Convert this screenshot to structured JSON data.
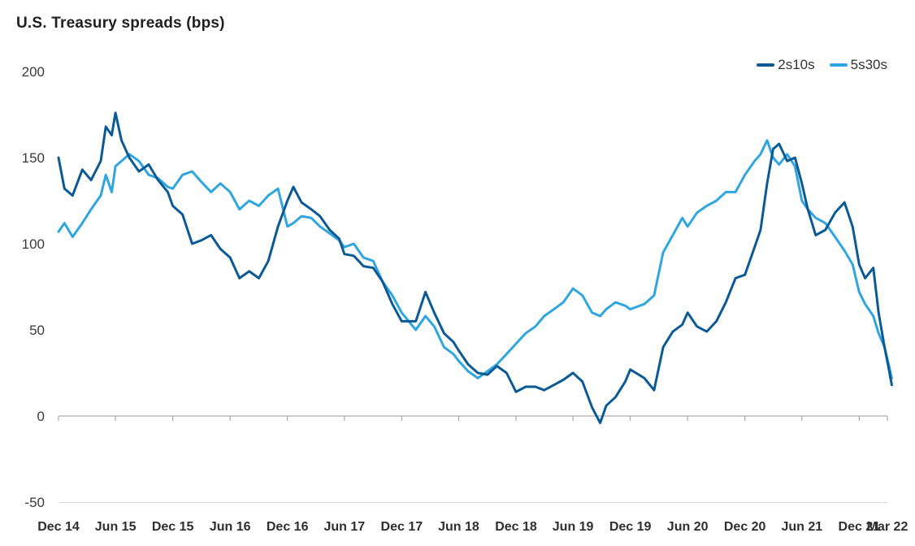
{
  "chart_data": {
    "type": "line",
    "title": "U.S. Treasury spreads (bps)",
    "xlabel": "",
    "ylabel": "",
    "ylim": [
      -50,
      200
    ],
    "yticks": [
      200,
      150,
      100,
      50,
      0,
      -50
    ],
    "x_tick_labels": [
      "Dec 14",
      "Jun 15",
      "Dec 15",
      "Jun 16",
      "Dec 16",
      "Jun 17",
      "Dec 17",
      "Jun 18",
      "Dec 18",
      "Jun 19",
      "Dec 19",
      "Jun 20",
      "Dec 20",
      "Jun 21",
      "Dec 21",
      "Mar 22"
    ],
    "x_tick_dates": [
      "2014-12-01",
      "2015-06-01",
      "2015-12-01",
      "2016-06-01",
      "2016-12-01",
      "2017-06-01",
      "2017-12-01",
      "2018-06-01",
      "2018-12-01",
      "2019-06-01",
      "2019-12-01",
      "2020-06-01",
      "2020-12-01",
      "2021-06-01",
      "2021-12-01",
      "2022-03-01"
    ],
    "grid": false,
    "legend_position": "top-right",
    "series": [
      {
        "name": "2s10s",
        "color": "#0b5a96",
        "points": [
          [
            "2014-12-01",
            150
          ],
          [
            "2014-12-20",
            132
          ],
          [
            "2015-01-15",
            128
          ],
          [
            "2015-02-15",
            143
          ],
          [
            "2015-03-15",
            137
          ],
          [
            "2015-04-15",
            148
          ],
          [
            "2015-05-01",
            168
          ],
          [
            "2015-05-20",
            163
          ],
          [
            "2015-06-01",
            176
          ],
          [
            "2015-06-20",
            160
          ],
          [
            "2015-07-15",
            150
          ],
          [
            "2015-08-15",
            142
          ],
          [
            "2015-09-15",
            146
          ],
          [
            "2015-10-15",
            137
          ],
          [
            "2015-11-15",
            130
          ],
          [
            "2015-12-01",
            122
          ],
          [
            "2016-01-01",
            117
          ],
          [
            "2016-02-01",
            100
          ],
          [
            "2016-03-01",
            102
          ],
          [
            "2016-04-01",
            105
          ],
          [
            "2016-05-01",
            97
          ],
          [
            "2016-06-01",
            92
          ],
          [
            "2016-07-01",
            80
          ],
          [
            "2016-08-01",
            84
          ],
          [
            "2016-09-01",
            80
          ],
          [
            "2016-10-01",
            90
          ],
          [
            "2016-11-01",
            110
          ],
          [
            "2016-12-01",
            125
          ],
          [
            "2016-12-20",
            133
          ],
          [
            "2017-01-15",
            124
          ],
          [
            "2017-02-15",
            120
          ],
          [
            "2017-03-15",
            116
          ],
          [
            "2017-04-15",
            108
          ],
          [
            "2017-05-15",
            103
          ],
          [
            "2017-06-01",
            94
          ],
          [
            "2017-07-01",
            93
          ],
          [
            "2017-08-01",
            87
          ],
          [
            "2017-09-01",
            86
          ],
          [
            "2017-10-01",
            78
          ],
          [
            "2017-11-01",
            65
          ],
          [
            "2017-12-01",
            55
          ],
          [
            "2018-01-15",
            55
          ],
          [
            "2018-02-15",
            72
          ],
          [
            "2018-03-15",
            60
          ],
          [
            "2018-04-15",
            48
          ],
          [
            "2018-05-15",
            43
          ],
          [
            "2018-06-01",
            38
          ],
          [
            "2018-07-01",
            30
          ],
          [
            "2018-08-01",
            25
          ],
          [
            "2018-09-01",
            24
          ],
          [
            "2018-10-01",
            29
          ],
          [
            "2018-11-01",
            25
          ],
          [
            "2018-12-01",
            14
          ],
          [
            "2019-01-01",
            17
          ],
          [
            "2019-02-01",
            17
          ],
          [
            "2019-03-01",
            15
          ],
          [
            "2019-04-01",
            18
          ],
          [
            "2019-05-01",
            21
          ],
          [
            "2019-06-01",
            25
          ],
          [
            "2019-07-01",
            20
          ],
          [
            "2019-08-01",
            5
          ],
          [
            "2019-08-27",
            -4
          ],
          [
            "2019-09-15",
            6
          ],
          [
            "2019-10-15",
            11
          ],
          [
            "2019-11-15",
            20
          ],
          [
            "2019-12-01",
            27
          ],
          [
            "2020-01-15",
            22
          ],
          [
            "2020-02-15",
            15
          ],
          [
            "2020-03-15",
            40
          ],
          [
            "2020-04-15",
            49
          ],
          [
            "2020-05-15",
            53
          ],
          [
            "2020-06-01",
            60
          ],
          [
            "2020-07-01",
            52
          ],
          [
            "2020-08-01",
            49
          ],
          [
            "2020-09-01",
            55
          ],
          [
            "2020-10-01",
            66
          ],
          [
            "2020-11-01",
            80
          ],
          [
            "2020-12-01",
            82
          ],
          [
            "2021-01-01",
            98
          ],
          [
            "2021-01-20",
            108
          ],
          [
            "2021-02-10",
            135
          ],
          [
            "2021-03-01",
            155
          ],
          [
            "2021-03-20",
            158
          ],
          [
            "2021-04-15",
            148
          ],
          [
            "2021-05-10",
            150
          ],
          [
            "2021-06-01",
            135
          ],
          [
            "2021-06-20",
            120
          ],
          [
            "2021-07-15",
            105
          ],
          [
            "2021-08-15",
            108
          ],
          [
            "2021-09-15",
            118
          ],
          [
            "2021-10-15",
            124
          ],
          [
            "2021-11-10",
            110
          ],
          [
            "2021-12-01",
            88
          ],
          [
            "2021-12-20",
            80
          ],
          [
            "2022-01-15",
            86
          ],
          [
            "2022-02-01",
            60
          ],
          [
            "2022-02-20",
            40
          ],
          [
            "2022-03-05",
            28
          ],
          [
            "2022-03-15",
            18
          ]
        ]
      },
      {
        "name": "5s30s",
        "color": "#2fa6e0",
        "points": [
          [
            "2014-12-01",
            107
          ],
          [
            "2014-12-20",
            112
          ],
          [
            "2015-01-15",
            104
          ],
          [
            "2015-02-15",
            112
          ],
          [
            "2015-03-15",
            120
          ],
          [
            "2015-04-15",
            128
          ],
          [
            "2015-05-01",
            140
          ],
          [
            "2015-05-20",
            130
          ],
          [
            "2015-06-01",
            145
          ],
          [
            "2015-06-20",
            148
          ],
          [
            "2015-07-15",
            152
          ],
          [
            "2015-08-15",
            148
          ],
          [
            "2015-09-15",
            140
          ],
          [
            "2015-10-15",
            138
          ],
          [
            "2015-11-15",
            133
          ],
          [
            "2015-12-01",
            132
          ],
          [
            "2016-01-01",
            140
          ],
          [
            "2016-02-01",
            142
          ],
          [
            "2016-03-01",
            136
          ],
          [
            "2016-04-01",
            130
          ],
          [
            "2016-05-01",
            135
          ],
          [
            "2016-06-01",
            130
          ],
          [
            "2016-07-01",
            120
          ],
          [
            "2016-08-01",
            125
          ],
          [
            "2016-09-01",
            122
          ],
          [
            "2016-10-01",
            128
          ],
          [
            "2016-11-01",
            132
          ],
          [
            "2016-12-01",
            110
          ],
          [
            "2016-12-20",
            112
          ],
          [
            "2017-01-15",
            116
          ],
          [
            "2017-02-15",
            115
          ],
          [
            "2017-03-15",
            110
          ],
          [
            "2017-04-15",
            106
          ],
          [
            "2017-05-15",
            102
          ],
          [
            "2017-06-01",
            98
          ],
          [
            "2017-07-01",
            100
          ],
          [
            "2017-08-01",
            92
          ],
          [
            "2017-09-01",
            90
          ],
          [
            "2017-10-01",
            78
          ],
          [
            "2017-11-01",
            70
          ],
          [
            "2017-12-01",
            60
          ],
          [
            "2018-01-15",
            50
          ],
          [
            "2018-02-15",
            58
          ],
          [
            "2018-03-15",
            52
          ],
          [
            "2018-04-15",
            40
          ],
          [
            "2018-05-15",
            36
          ],
          [
            "2018-06-01",
            32
          ],
          [
            "2018-07-01",
            26
          ],
          [
            "2018-08-01",
            22
          ],
          [
            "2018-09-01",
            26
          ],
          [
            "2018-10-01",
            30
          ],
          [
            "2018-11-01",
            36
          ],
          [
            "2018-12-01",
            42
          ],
          [
            "2019-01-01",
            48
          ],
          [
            "2019-02-01",
            52
          ],
          [
            "2019-03-01",
            58
          ],
          [
            "2019-04-01",
            62
          ],
          [
            "2019-05-01",
            66
          ],
          [
            "2019-06-01",
            74
          ],
          [
            "2019-07-01",
            70
          ],
          [
            "2019-08-01",
            60
          ],
          [
            "2019-08-27",
            58
          ],
          [
            "2019-09-15",
            62
          ],
          [
            "2019-10-15",
            66
          ],
          [
            "2019-11-15",
            64
          ],
          [
            "2019-12-01",
            62
          ],
          [
            "2020-01-15",
            65
          ],
          [
            "2020-02-15",
            70
          ],
          [
            "2020-03-15",
            95
          ],
          [
            "2020-04-15",
            105
          ],
          [
            "2020-05-15",
            115
          ],
          [
            "2020-06-01",
            110
          ],
          [
            "2020-07-01",
            118
          ],
          [
            "2020-08-01",
            122
          ],
          [
            "2020-09-01",
            125
          ],
          [
            "2020-10-01",
            130
          ],
          [
            "2020-11-01",
            130
          ],
          [
            "2020-12-01",
            140
          ],
          [
            "2021-01-01",
            148
          ],
          [
            "2021-01-20",
            152
          ],
          [
            "2021-02-10",
            160
          ],
          [
            "2021-03-01",
            150
          ],
          [
            "2021-03-20",
            146
          ],
          [
            "2021-04-15",
            152
          ],
          [
            "2021-05-10",
            145
          ],
          [
            "2021-06-01",
            125
          ],
          [
            "2021-06-20",
            120
          ],
          [
            "2021-07-15",
            115
          ],
          [
            "2021-08-15",
            112
          ],
          [
            "2021-09-15",
            104
          ],
          [
            "2021-10-15",
            96
          ],
          [
            "2021-11-10",
            88
          ],
          [
            "2021-12-01",
            72
          ],
          [
            "2021-12-20",
            65
          ],
          [
            "2022-01-15",
            58
          ],
          [
            "2022-02-01",
            48
          ],
          [
            "2022-02-20",
            40
          ],
          [
            "2022-03-05",
            30
          ],
          [
            "2022-03-15",
            22
          ]
        ]
      }
    ]
  }
}
